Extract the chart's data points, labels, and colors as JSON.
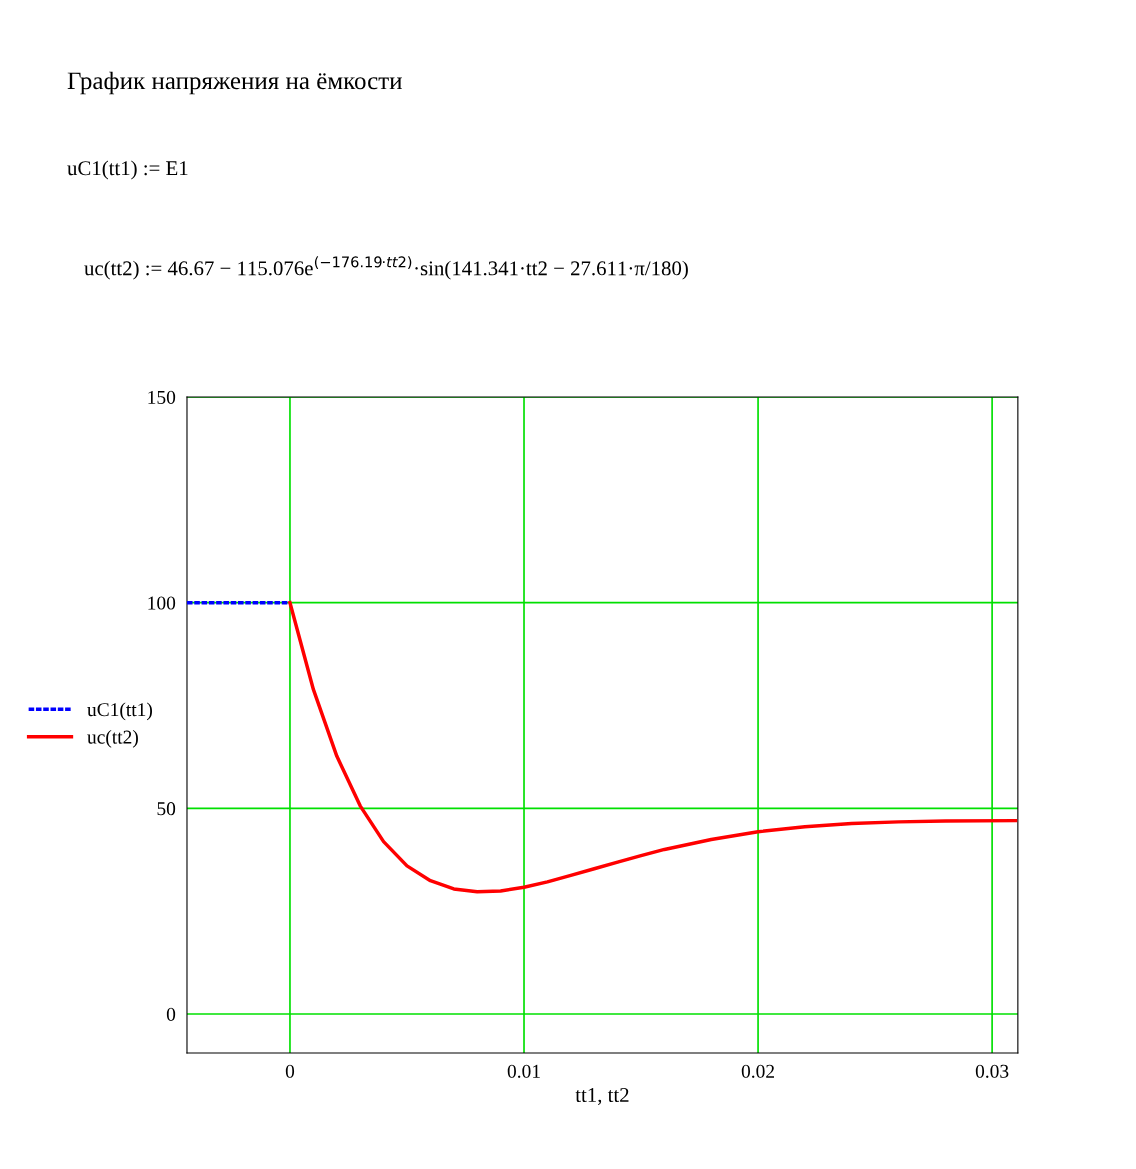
{
  "chart_data": {
    "type": "line",
    "title": "График напряжения на ёмкости",
    "annotations": [
      "uC1(tt1) := E1",
      "uc(tt2) := 46.67 − 115.076e$^{(−176.19·tt2)}$·sin(141.341·tt2 − 27.611·π/180)"
    ],
    "xlabel": "tt1, tt2",
    "series": [
      {
        "name": "uC1(tt1)",
        "color": "#0000ff",
        "line_style": "dotted",
        "x": [
          -0.0044,
          0
        ],
        "values": [
          100,
          100
        ]
      },
      {
        "name": "uc(tt2)",
        "color": "#ff0000",
        "line_style": "solid",
        "x": [
          0,
          0.001,
          0.002,
          0.003,
          0.004,
          0.005,
          0.006,
          0.007,
          0.008,
          0.009,
          0.01,
          0.011,
          0.012,
          0.013,
          0.014,
          0.015,
          0.016,
          0.018,
          0.02,
          0.022,
          0.024,
          0.026,
          0.028,
          0.031
        ],
        "values": [
          100,
          78.9,
          62.7,
          50.6,
          41.9,
          36.0,
          32.4,
          30.4,
          29.7,
          29.9,
          30.8,
          32.1,
          33.7,
          35.3,
          36.9,
          38.5,
          40.0,
          42.4,
          44.3,
          45.5,
          46.3,
          46.7,
          46.9,
          47.0
        ]
      }
    ],
    "xlim": [
      -0.0044,
      0.0311
    ],
    "xticks": [
      0,
      0.01,
      0.02,
      0.03
    ],
    "ylim": [
      -9.5,
      150
    ],
    "yticks": [
      0,
      50,
      100,
      150
    ],
    "grid": true,
    "legend": "left",
    "marker": "none"
  }
}
